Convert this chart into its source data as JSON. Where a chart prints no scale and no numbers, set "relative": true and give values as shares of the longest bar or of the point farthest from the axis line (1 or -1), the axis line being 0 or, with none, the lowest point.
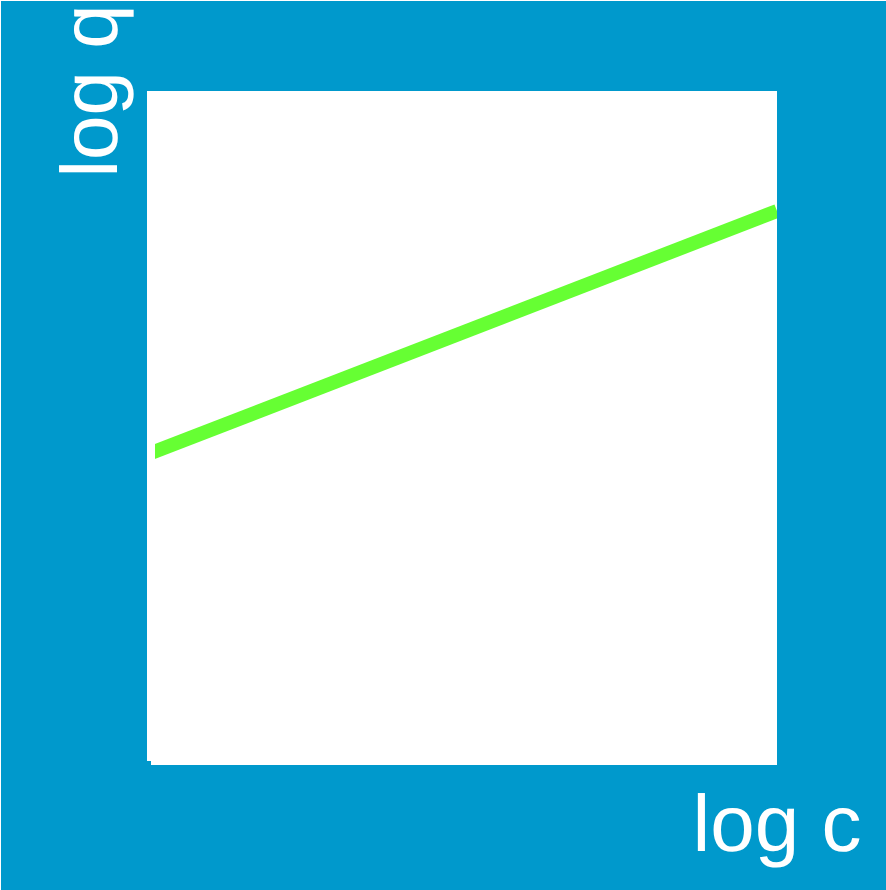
{
  "chart_data": {
    "type": "line",
    "relative": true,
    "categories": [
      null,
      null
    ],
    "series": [
      {
        "color": "#66ff33",
        "values": [
          0.56,
          1
        ]
      }
    ],
    "xlabel": "log c",
    "ylabel": "log q",
    "grid": false,
    "marker": "none",
    "line_style": "solid"
  }
}
